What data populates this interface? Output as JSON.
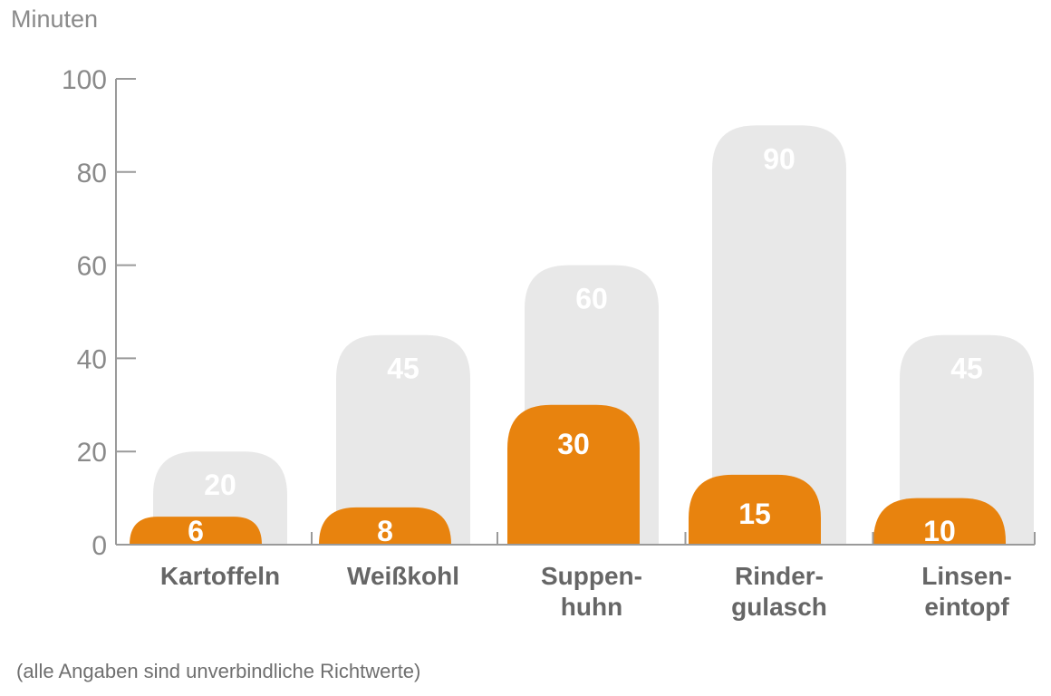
{
  "chart_data": {
    "type": "bar",
    "ylabel": "Minuten",
    "ylim": [
      0,
      100
    ],
    "yticks": [
      0,
      20,
      40,
      60,
      80,
      100
    ],
    "categories": [
      [
        "Kartoffeln"
      ],
      [
        "Weißkohl"
      ],
      [
        "Suppen-",
        "huhn"
      ],
      [
        "Rinder-",
        "gulasch"
      ],
      [
        "Linsen-",
        "eintopf"
      ]
    ],
    "series": [
      {
        "values": [
          20,
          45,
          60,
          90,
          45
        ],
        "color": "#e8e8e8"
      },
      {
        "values": [
          6,
          8,
          30,
          15,
          10
        ],
        "color": "#e8830e"
      }
    ],
    "grid": false,
    "legend": "none",
    "axis_color": "#9a9a9a"
  },
  "footnote": "(alle Angaben sind unverbindliche Richtwerte)"
}
